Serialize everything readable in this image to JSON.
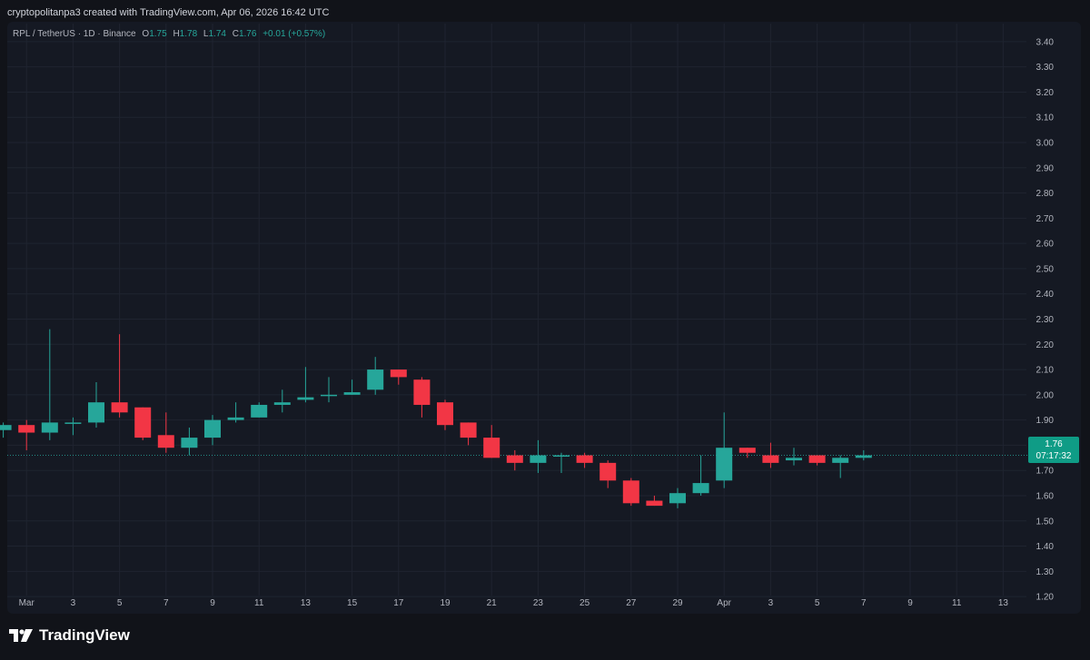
{
  "attribution": "cryptopolitanpa3 created with TradingView.com, Apr 06, 2026 16:42 UTC",
  "legend": {
    "symbol": "RPL / TetherUS · 1D · Binance",
    "o_label": "O",
    "o_value": "1.75",
    "h_label": "H",
    "h_value": "1.78",
    "l_label": "L",
    "l_value": "1.74",
    "c_label": "C",
    "c_value": "1.76",
    "change": "+0.01 (+0.57%)"
  },
  "price_tag": {
    "price": "1.76",
    "countdown": "07:17:32"
  },
  "footer": {
    "brand": "TradingView"
  },
  "colors": {
    "up": "#26a69a",
    "down": "#f23645",
    "grid": "#1f2430",
    "background": "#151923",
    "text": "#b2b5be"
  },
  "chart_data": {
    "type": "candlestick",
    "current_price": 1.76,
    "ylim": [
      1.15,
      3.45
    ],
    "y_ticks": [
      "1.20",
      "1.30",
      "1.40",
      "1.50",
      "1.60",
      "1.70",
      "1.80",
      "1.90",
      "2.00",
      "2.10",
      "2.20",
      "2.30",
      "2.40",
      "2.50",
      "2.60",
      "2.70",
      "2.80",
      "2.90",
      "3.00",
      "3.10",
      "3.20",
      "3.30",
      "3.40"
    ],
    "x_ticks": [
      "Mar",
      "3",
      "5",
      "7",
      "9",
      "11",
      "13",
      "15",
      "17",
      "19",
      "21",
      "23",
      "25",
      "27",
      "29",
      "Apr",
      "3",
      "5",
      "7",
      "9",
      "11",
      "13"
    ],
    "candles": [
      {
        "date": "Feb 28",
        "open": 1.86,
        "high": 1.89,
        "low": 1.83,
        "close": 1.88
      },
      {
        "date": "Mar 1",
        "open": 1.88,
        "high": 1.9,
        "low": 1.78,
        "close": 1.85
      },
      {
        "date": "Mar 2",
        "open": 1.85,
        "high": 2.26,
        "low": 1.82,
        "close": 1.89
      },
      {
        "date": "Mar 3",
        "open": 1.89,
        "high": 1.91,
        "low": 1.84,
        "close": 1.89
      },
      {
        "date": "Mar 4",
        "open": 1.89,
        "high": 2.05,
        "low": 1.87,
        "close": 1.97
      },
      {
        "date": "Mar 5",
        "open": 1.97,
        "high": 2.24,
        "low": 1.91,
        "close": 1.93
      },
      {
        "date": "Mar 6",
        "open": 1.95,
        "high": 1.95,
        "low": 1.82,
        "close": 1.83
      },
      {
        "date": "Mar 7",
        "open": 1.84,
        "high": 1.93,
        "low": 1.77,
        "close": 1.79
      },
      {
        "date": "Mar 8",
        "open": 1.79,
        "high": 1.87,
        "low": 1.76,
        "close": 1.83
      },
      {
        "date": "Mar 9",
        "open": 1.83,
        "high": 1.92,
        "low": 1.8,
        "close": 1.9
      },
      {
        "date": "Mar 10",
        "open": 1.9,
        "high": 1.97,
        "low": 1.89,
        "close": 1.91
      },
      {
        "date": "Mar 11",
        "open": 1.91,
        "high": 1.97,
        "low": 1.91,
        "close": 1.96
      },
      {
        "date": "Mar 12",
        "open": 1.96,
        "high": 2.02,
        "low": 1.93,
        "close": 1.97
      },
      {
        "date": "Mar 13",
        "open": 1.98,
        "high": 2.11,
        "low": 1.97,
        "close": 1.99
      },
      {
        "date": "Mar 14",
        "open": 2.0,
        "high": 2.07,
        "low": 1.97,
        "close": 2.0
      },
      {
        "date": "Mar 15",
        "open": 2.0,
        "high": 2.06,
        "low": 2.0,
        "close": 2.01
      },
      {
        "date": "Mar 16",
        "open": 2.02,
        "high": 2.15,
        "low": 2.0,
        "close": 2.1
      },
      {
        "date": "Mar 17",
        "open": 2.1,
        "high": 2.1,
        "low": 2.04,
        "close": 2.07
      },
      {
        "date": "Mar 18",
        "open": 2.06,
        "high": 2.07,
        "low": 1.91,
        "close": 1.96
      },
      {
        "date": "Mar 19",
        "open": 1.97,
        "high": 1.98,
        "low": 1.86,
        "close": 1.88
      },
      {
        "date": "Mar 20",
        "open": 1.89,
        "high": 1.89,
        "low": 1.8,
        "close": 1.83
      },
      {
        "date": "Mar 21",
        "open": 1.83,
        "high": 1.88,
        "low": 1.75,
        "close": 1.75
      },
      {
        "date": "Mar 22",
        "open": 1.76,
        "high": 1.78,
        "low": 1.7,
        "close": 1.73
      },
      {
        "date": "Mar 23",
        "open": 1.73,
        "high": 1.82,
        "low": 1.69,
        "close": 1.76
      },
      {
        "date": "Mar 24",
        "open": 1.76,
        "high": 1.77,
        "low": 1.69,
        "close": 1.76
      },
      {
        "date": "Mar 25",
        "open": 1.76,
        "high": 1.77,
        "low": 1.71,
        "close": 1.73
      },
      {
        "date": "Mar 26",
        "open": 1.73,
        "high": 1.74,
        "low": 1.63,
        "close": 1.66
      },
      {
        "date": "Mar 27",
        "open": 1.66,
        "high": 1.67,
        "low": 1.56,
        "close": 1.57
      },
      {
        "date": "Mar 28",
        "open": 1.58,
        "high": 1.6,
        "low": 1.56,
        "close": 1.56
      },
      {
        "date": "Mar 29",
        "open": 1.57,
        "high": 1.63,
        "low": 1.55,
        "close": 1.61
      },
      {
        "date": "Mar 30",
        "open": 1.61,
        "high": 1.76,
        "low": 1.6,
        "close": 1.65
      },
      {
        "date": "Mar 31",
        "open": 1.66,
        "high": 1.93,
        "low": 1.63,
        "close": 1.79
      },
      {
        "date": "Apr 1",
        "open": 1.79,
        "high": 1.79,
        "low": 1.75,
        "close": 1.77
      },
      {
        "date": "Apr 2",
        "open": 1.76,
        "high": 1.81,
        "low": 1.71,
        "close": 1.73
      },
      {
        "date": "Apr 3",
        "open": 1.74,
        "high": 1.79,
        "low": 1.72,
        "close": 1.75
      },
      {
        "date": "Apr 4",
        "open": 1.76,
        "high": 1.76,
        "low": 1.72,
        "close": 1.73
      },
      {
        "date": "Apr 5",
        "open": 1.73,
        "high": 1.76,
        "low": 1.67,
        "close": 1.75
      },
      {
        "date": "Apr 6",
        "open": 1.75,
        "high": 1.78,
        "low": 1.74,
        "close": 1.76
      }
    ]
  }
}
